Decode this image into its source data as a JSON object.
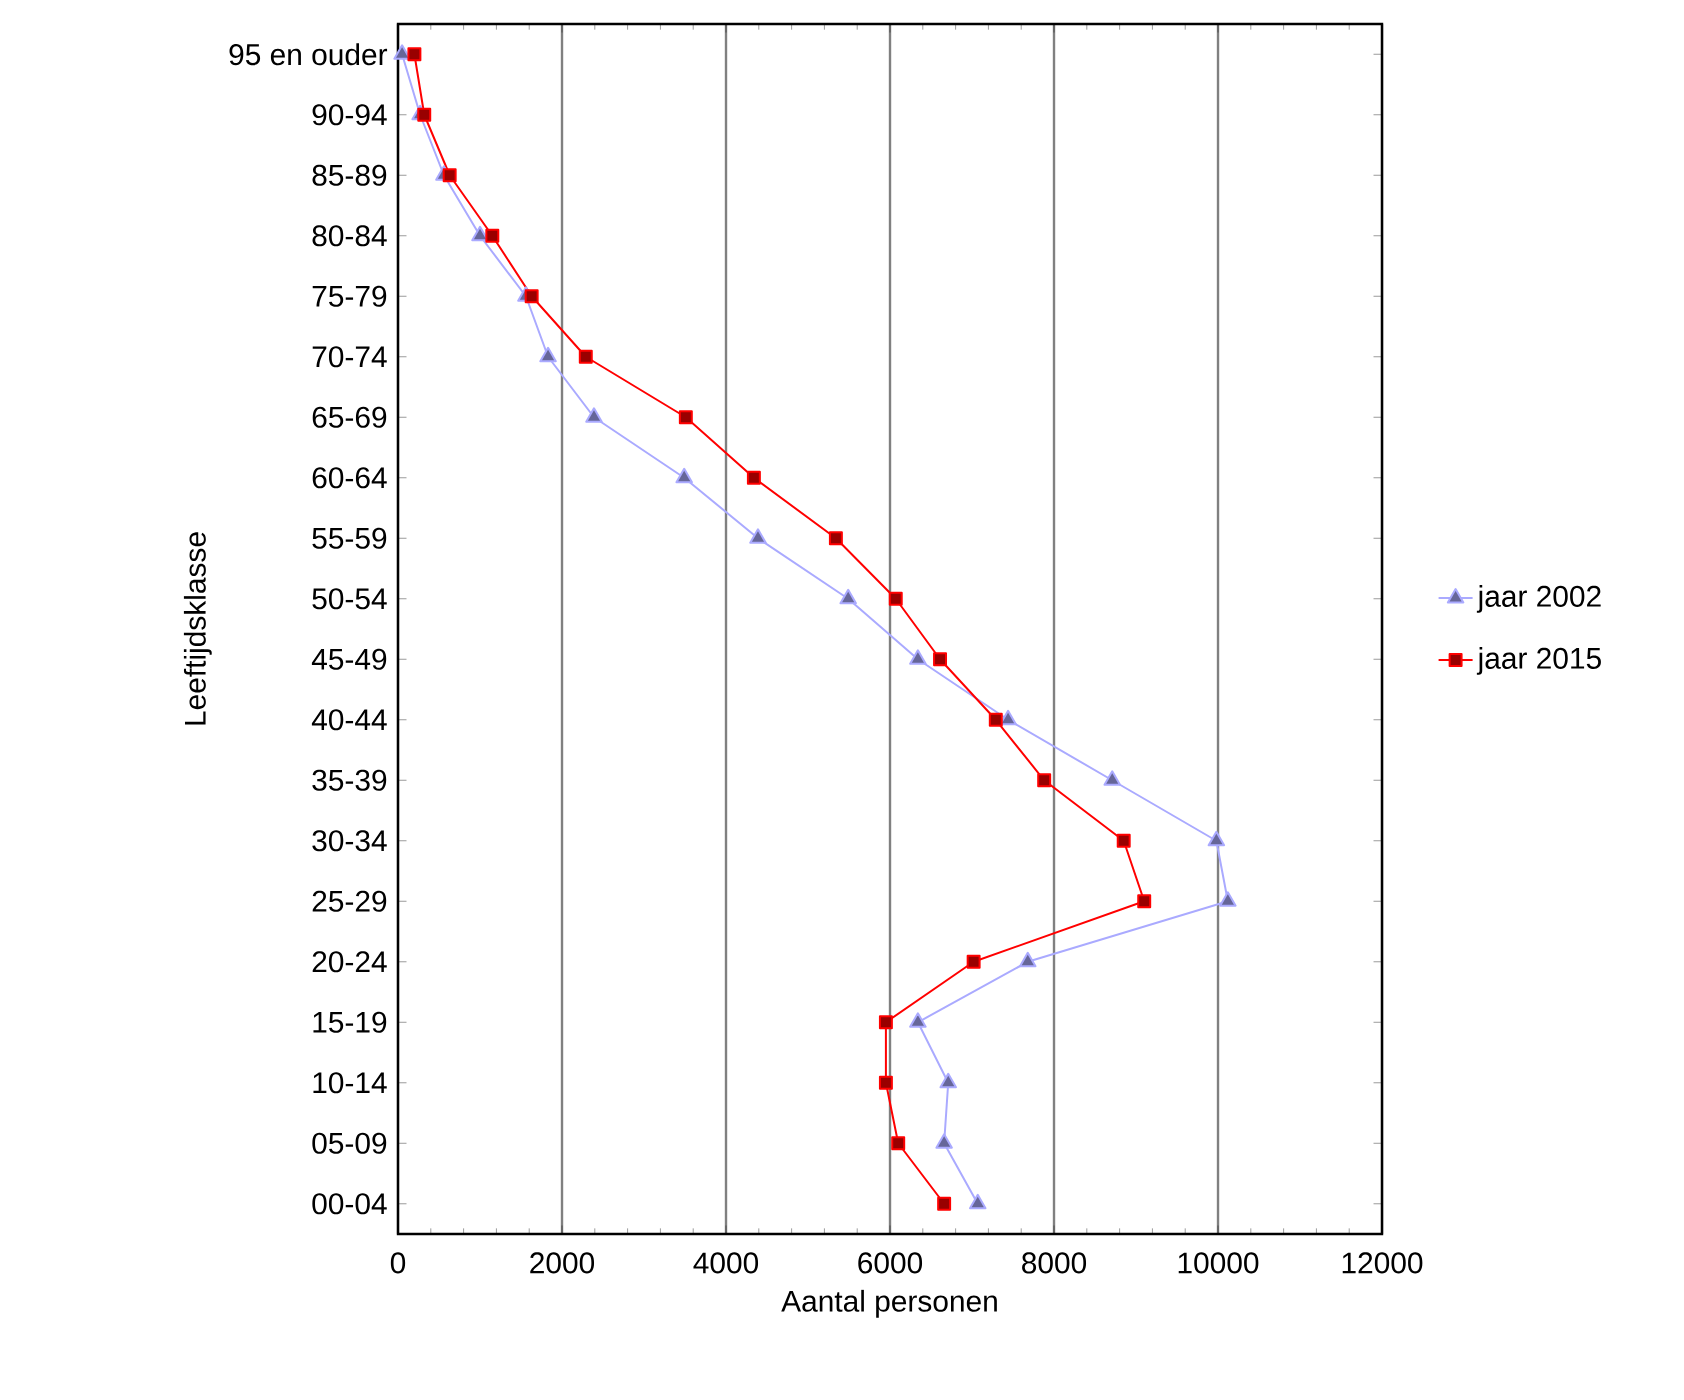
{
  "chart_data": {
    "type": "line",
    "orientation": "horizontal",
    "xlabel": "Aantal personen",
    "ylabel": "Leeftijdsklasse",
    "categories": [
      "95 en ouder",
      "90-94",
      "85-89",
      "80-84",
      "75-79",
      "70-74",
      "65-69",
      "60-64",
      "55-59",
      "50-54",
      "45-49",
      "40-44",
      "35-39",
      "30-34",
      "25-29",
      "20-24",
      "15-19",
      "10-14",
      "05-09",
      "00-04"
    ],
    "series": [
      {
        "name": "jaar 2002",
        "color": "#aaaaff",
        "marker": "triangle",
        "values": [
          50,
          270,
          560,
          1000,
          1560,
          1830,
          2390,
          3490,
          4390,
          5490,
          6340,
          7440,
          8710,
          9980,
          10120,
          7680,
          6340,
          6710,
          6660,
          7070
        ]
      },
      {
        "name": "jaar 2015",
        "color": "#ff0000",
        "marker": "square",
        "values": [
          200,
          320,
          630,
          1150,
          1630,
          2290,
          3510,
          4340,
          5340,
          6070,
          6610,
          7290,
          7880,
          8850,
          9100,
          7020,
          5950,
          5950,
          6100,
          6660
        ]
      }
    ],
    "xlim": [
      0,
      12000
    ],
    "xticks": [
      0,
      2000,
      4000,
      6000,
      8000,
      10000,
      12000
    ],
    "grid": "x",
    "legend": "right",
    "line_style": "solid"
  }
}
